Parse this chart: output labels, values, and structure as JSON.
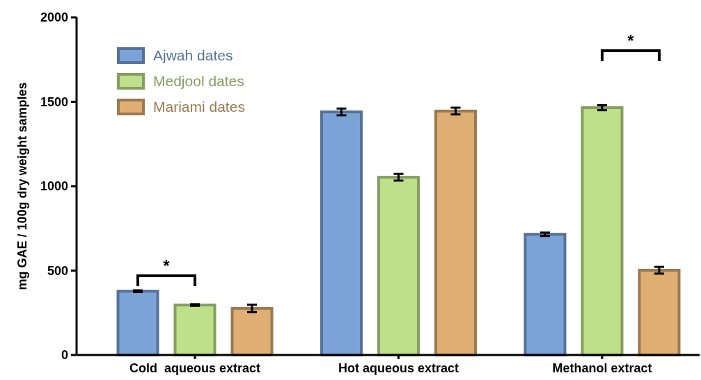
{
  "chart_data": {
    "type": "bar",
    "ylabel": "mg GAE / 100g dry weight samples",
    "categories": [
      "Cold  aqueous extract",
      "Hot aqueous extract",
      "Methanol extract"
    ],
    "series": [
      {
        "name": "Ajwah dates",
        "color": "#7ba3d8",
        "values": [
          378,
          1440,
          715
        ],
        "errors": [
          5,
          20,
          10
        ]
      },
      {
        "name": "Medjool dates",
        "color": "#bfe08a",
        "values": [
          296,
          1053,
          1465
        ],
        "errors": [
          5,
          20,
          15
        ]
      },
      {
        "name": "Mariami dates",
        "color": "#deae72",
        "values": [
          276,
          1445,
          502
        ],
        "errors": [
          22,
          20,
          20
        ]
      }
    ],
    "ylim": [
      0,
      2000
    ],
    "yticks": [
      0,
      500,
      1000,
      1500,
      2000
    ],
    "grid": false,
    "legend": "top left",
    "annotations": [
      "*",
      "*"
    ]
  }
}
